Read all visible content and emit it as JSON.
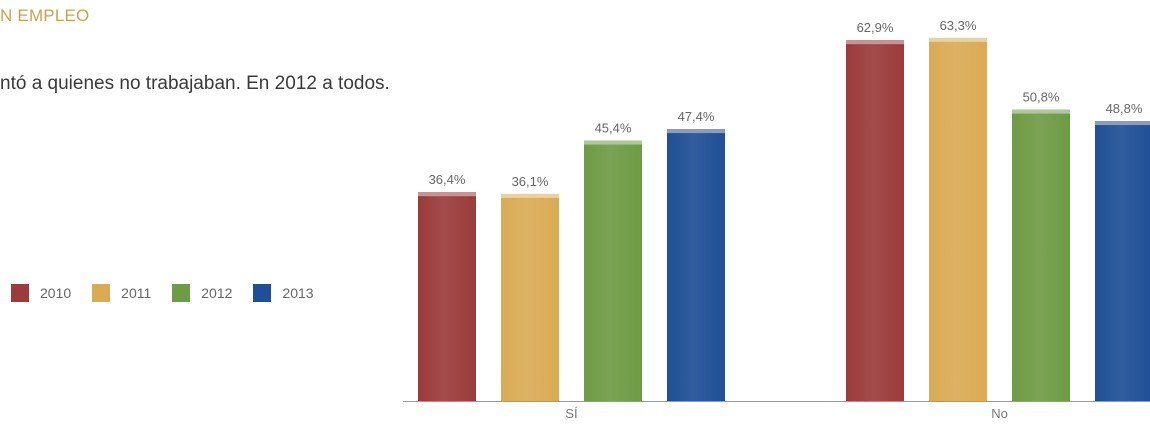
{
  "page": {
    "heading": "N EMPLEO",
    "subtitle": "ntó a quienes no trabajaban. En 2012 a todos."
  },
  "colors": {
    "heading": "#c8a250",
    "series": [
      "#9b3b3b",
      "#d9ab55",
      "#6e9b45",
      "#1f4f96"
    ]
  },
  "legend": [
    {
      "label": "2010"
    },
    {
      "label": "2011"
    },
    {
      "label": "2012"
    },
    {
      "label": "2013"
    }
  ],
  "chart_data": {
    "type": "bar",
    "categories": [
      "SÍ",
      "No"
    ],
    "series": [
      {
        "name": "2010",
        "values": [
          36.4,
          62.9
        ],
        "labels": [
          "36,4%",
          "62,9%"
        ]
      },
      {
        "name": "2011",
        "values": [
          36.1,
          63.3
        ],
        "labels": [
          "36,1%",
          "63,3%"
        ]
      },
      {
        "name": "2012",
        "values": [
          45.4,
          50.8
        ],
        "labels": [
          "45,4%",
          "50,8%"
        ]
      },
      {
        "name": "2013",
        "values": [
          47.4,
          48.8
        ],
        "labels": [
          "47,4%",
          "48,8%"
        ]
      }
    ],
    "ylim": [
      0,
      64.5
    ],
    "grid": false,
    "legend_position": "left"
  }
}
